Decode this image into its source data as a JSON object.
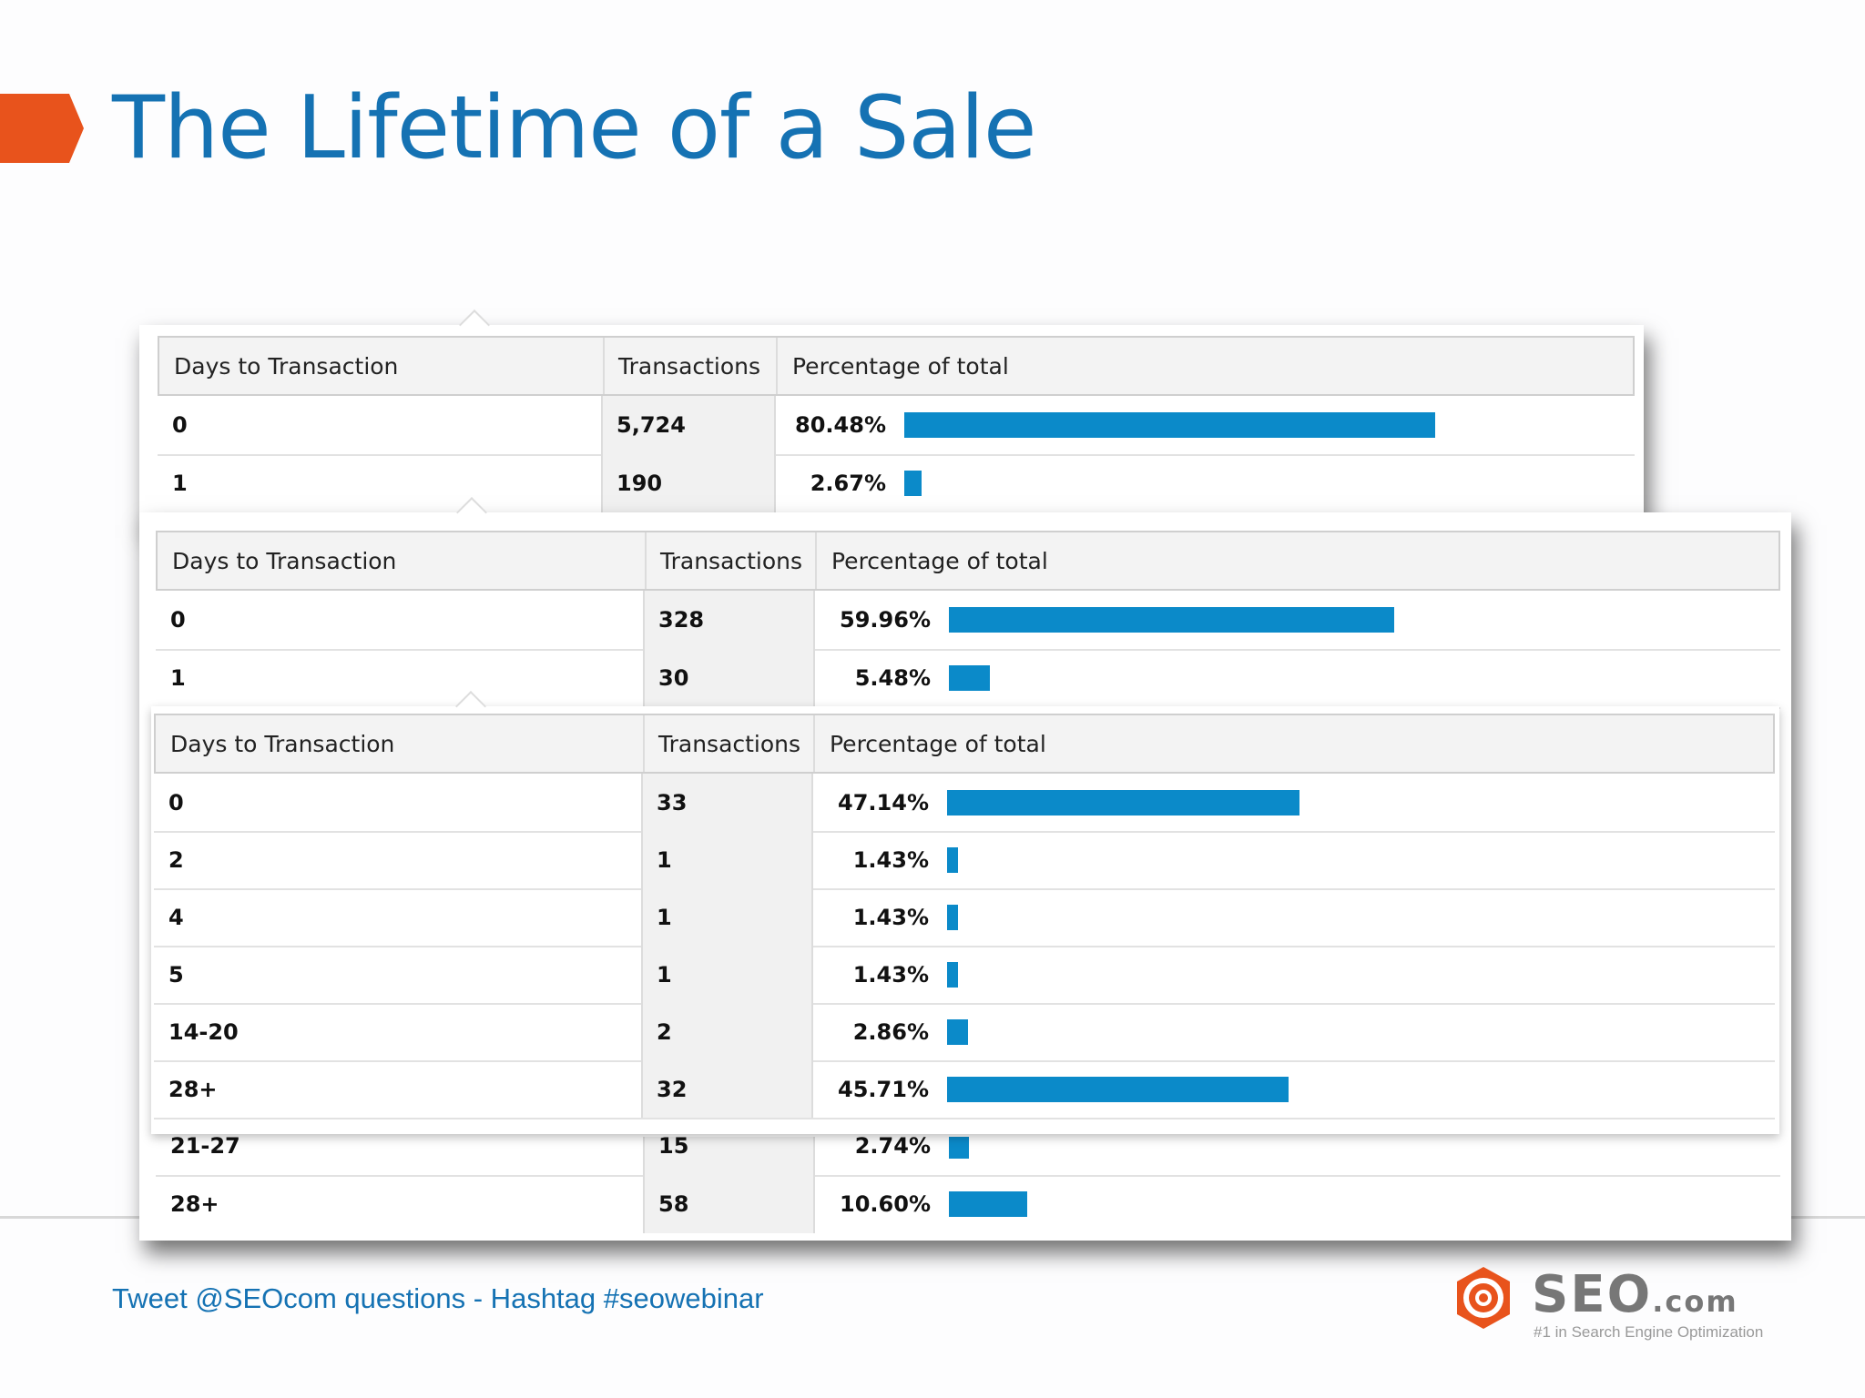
{
  "title": "The Lifetime of a Sale",
  "footer": "Tweet @SEOcom questions - Hashtag #seowebinar",
  "logo": {
    "brand": "SEO",
    "suffix": ".com",
    "tagline": "#1 in Search Engine Optimization"
  },
  "colors": {
    "title": "#1572b3",
    "accent": "#e8531c",
    "bar": "#0b8ac9"
  },
  "headers": {
    "days": "Days to Transaction",
    "transactions": "Transactions",
    "percentage": "Percentage of total"
  },
  "table1": {
    "rows": [
      {
        "days": "0",
        "transactions": "5,724",
        "percentage": "80.48%",
        "pct": 80.48
      },
      {
        "days": "1",
        "transactions": "190",
        "percentage": "2.67%",
        "pct": 2.67
      }
    ]
  },
  "table2": {
    "rows": [
      {
        "days": "0",
        "transactions": "328",
        "percentage": "59.96%",
        "pct": 59.96
      },
      {
        "days": "1",
        "transactions": "30",
        "percentage": "5.48%",
        "pct": 5.48
      }
    ],
    "tail_rows": [
      {
        "days": "21-27",
        "transactions": "15",
        "percentage": "2.74%",
        "pct": 2.74
      },
      {
        "days": "28+",
        "transactions": "58",
        "percentage": "10.60%",
        "pct": 10.6
      }
    ]
  },
  "table3": {
    "rows": [
      {
        "days": "0",
        "transactions": "33",
        "percentage": "47.14%",
        "pct": 47.14
      },
      {
        "days": "2",
        "transactions": "1",
        "percentage": "1.43%",
        "pct": 1.43
      },
      {
        "days": "4",
        "transactions": "1",
        "percentage": "1.43%",
        "pct": 1.43
      },
      {
        "days": "5",
        "transactions": "1",
        "percentage": "1.43%",
        "pct": 1.43
      },
      {
        "days": "14-20",
        "transactions": "2",
        "percentage": "2.86%",
        "pct": 2.86
      },
      {
        "days": "28+",
        "transactions": "32",
        "percentage": "45.71%",
        "pct": 45.71
      }
    ]
  }
}
